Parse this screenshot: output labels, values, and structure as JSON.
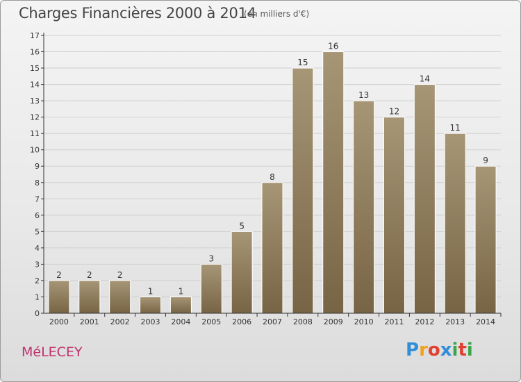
{
  "title": "Charges Financières 2000 à 2014",
  "subtitle": "(en milliers d'€)",
  "commune": "MéLECEY",
  "logo": {
    "letters": [
      "P",
      "r",
      "o",
      "x",
      "i",
      "t",
      "i"
    ],
    "colors": [
      "#2f8ed8",
      "#f0a21c",
      "#e0402f",
      "#2f8ed8",
      "#3aa54a",
      "#e0402f",
      "#3aa54a"
    ]
  },
  "colors": {
    "bar_top": "#a69676",
    "bar_bottom": "#776445",
    "grid": "#cfcfcf",
    "axis": "#333333"
  },
  "chart_data": {
    "type": "bar",
    "categories": [
      "2000",
      "2001",
      "2002",
      "2003",
      "2004",
      "2005",
      "2006",
      "2007",
      "2008",
      "2009",
      "2010",
      "2011",
      "2012",
      "2013",
      "2014"
    ],
    "values": [
      2,
      2,
      2,
      1,
      1,
      3,
      5,
      8,
      15,
      16,
      13,
      12,
      14,
      11,
      9
    ],
    "ylim": [
      0,
      17
    ],
    "yticks": [
      "0",
      "1",
      "2",
      "3",
      "4",
      "5",
      "6",
      "7",
      "8",
      "9",
      "10",
      "11",
      "12",
      "13",
      "14",
      "15",
      "16",
      "17"
    ],
    "grid": true,
    "data_labels": true
  }
}
